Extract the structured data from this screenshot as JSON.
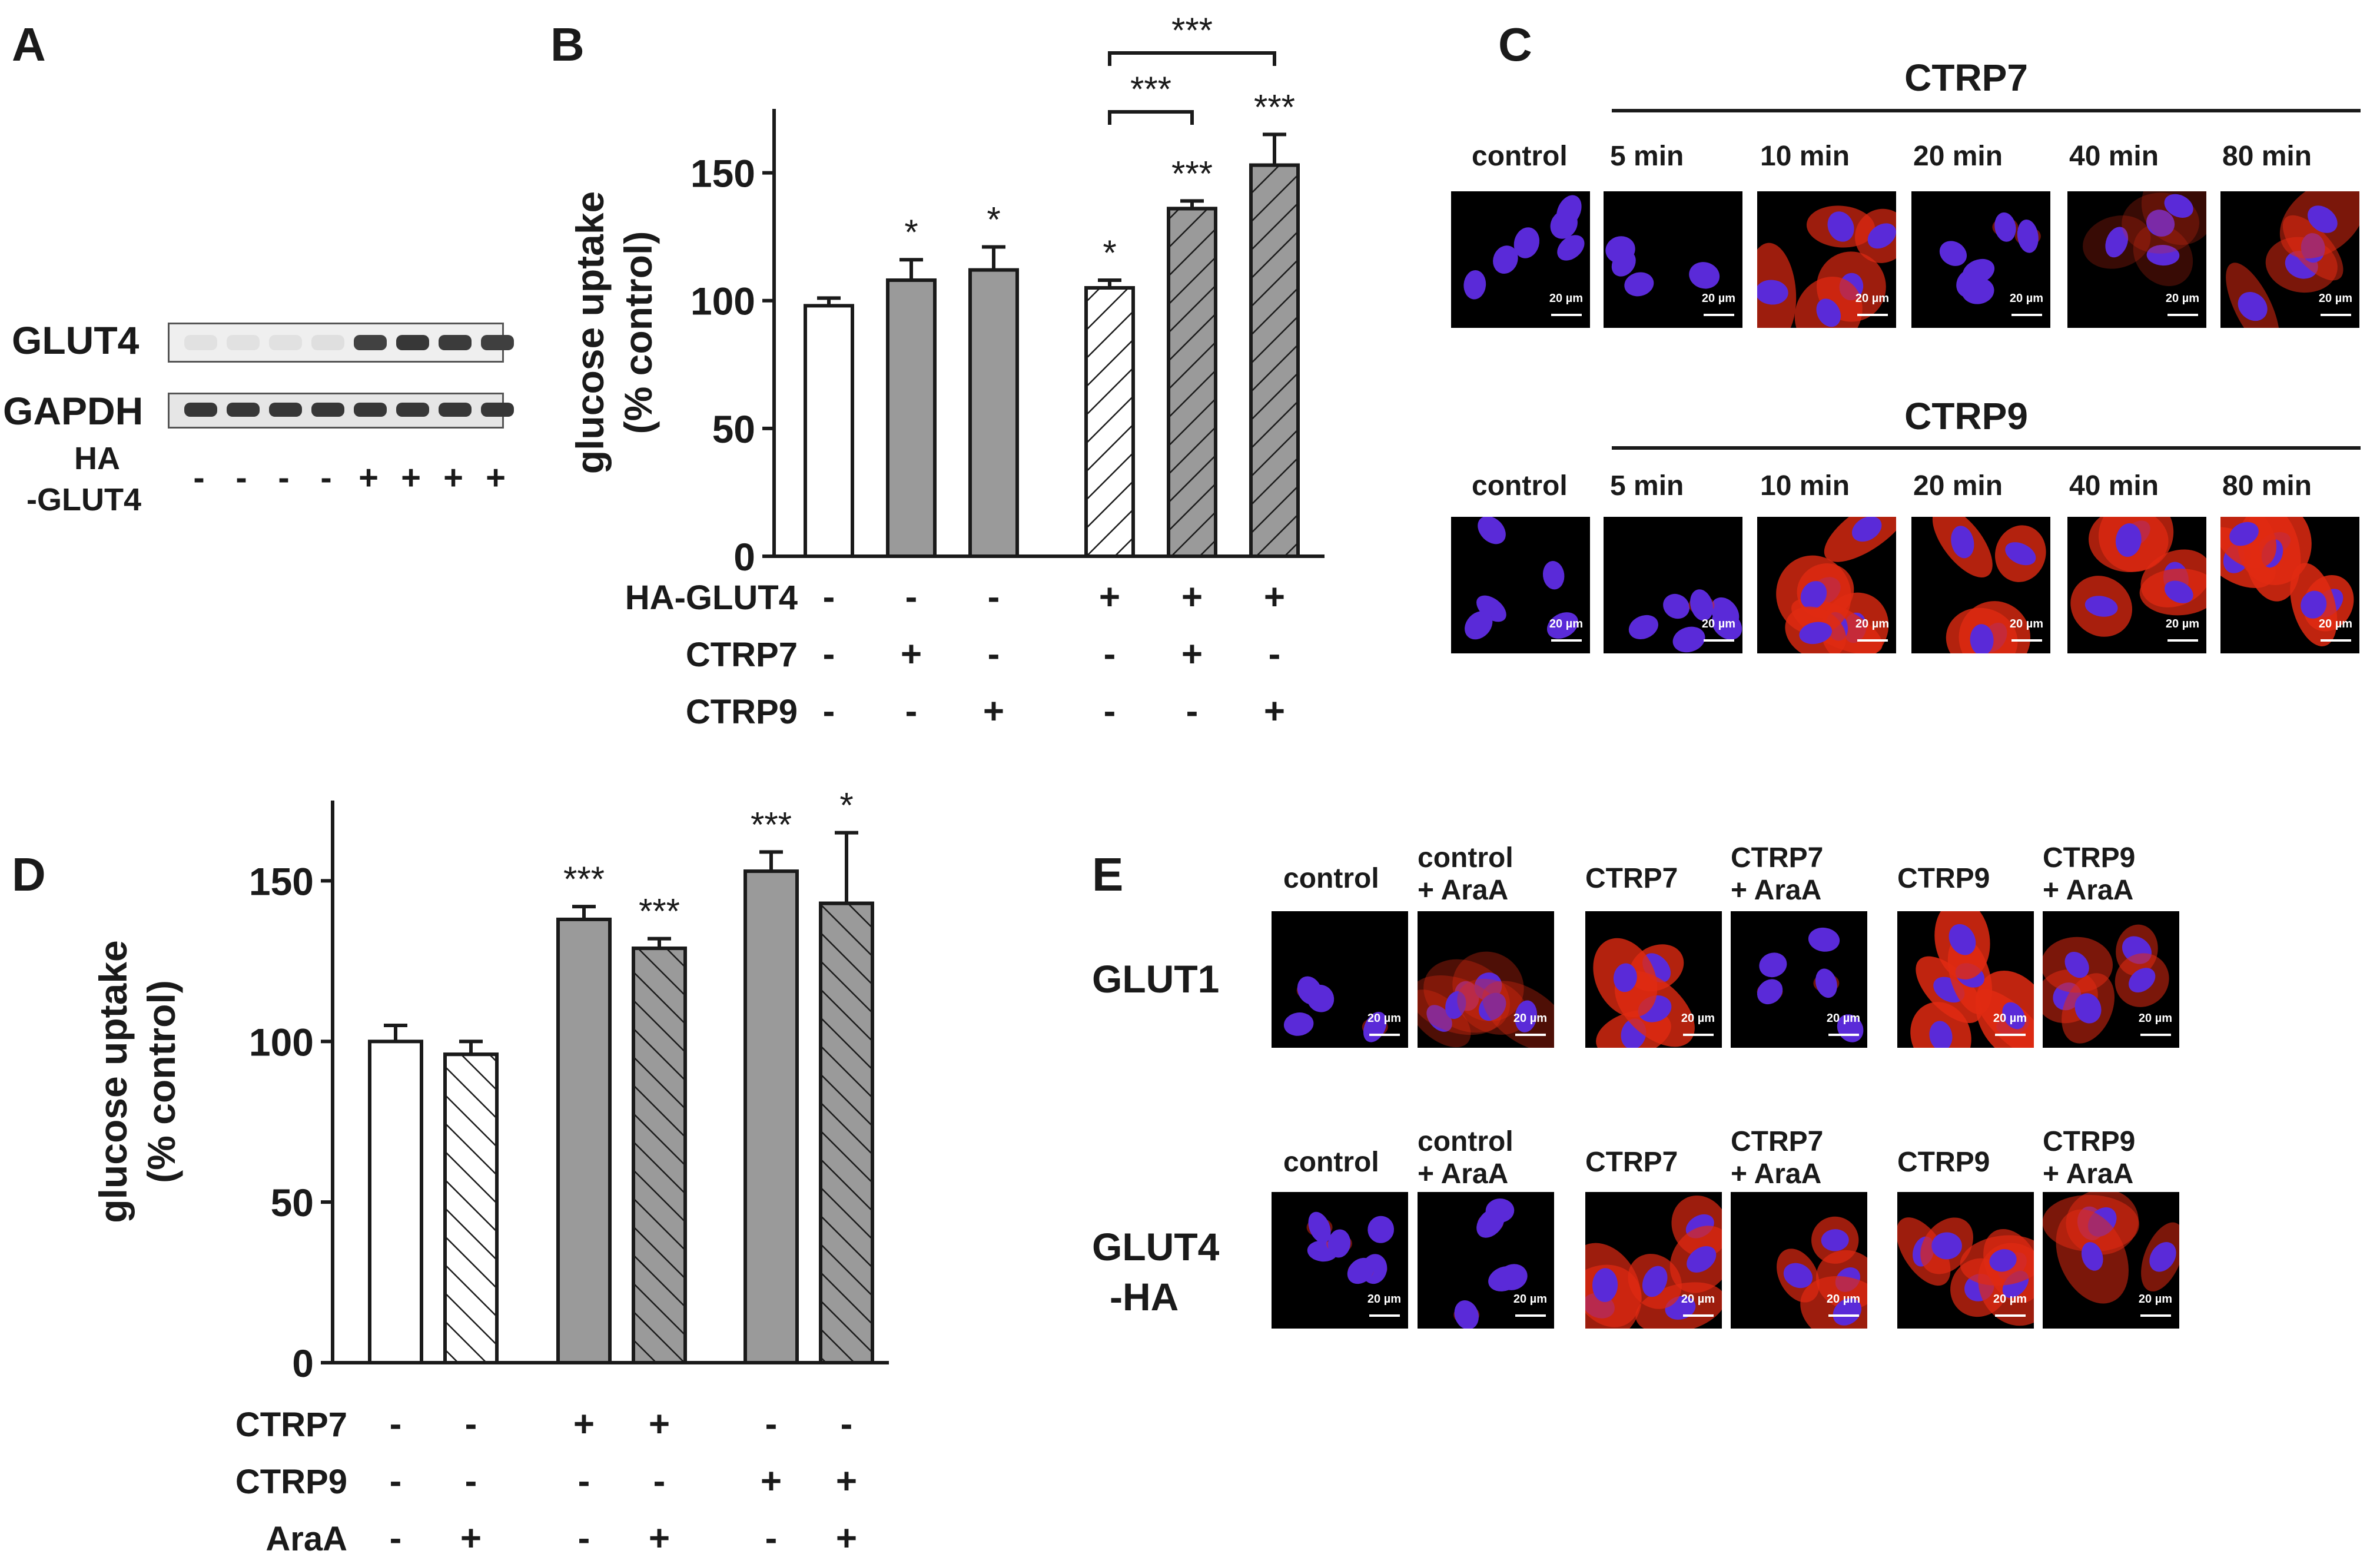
{
  "colors": {
    "bar_control": "#ffffff",
    "bar_treated": "#9a9a9a",
    "axis": "#1a1a1a",
    "micrograph_bg": "#000000",
    "nucleus": "#5a2ad8",
    "red_stain": "#e02a12"
  },
  "panel_labels": {
    "a": "A",
    "b": "B",
    "c": "C",
    "d": "D",
    "e": "E"
  },
  "panel_a": {
    "row_labels": [
      "GLUT4",
      "GAPDH"
    ],
    "ha_label": "HA",
    "ha_label2": "-GLUT4",
    "lane_signs": [
      "-",
      "-",
      "-",
      "-",
      "+",
      "+",
      "+",
      "+"
    ],
    "glut4_band_intensity": [
      0.05,
      0.05,
      0.05,
      0.06,
      0.85,
      0.9,
      0.88,
      0.86
    ],
    "gapdh_band_intensity": [
      0.9,
      0.9,
      0.9,
      0.9,
      0.9,
      0.9,
      0.9,
      0.9
    ]
  },
  "panel_c": {
    "group_labels": [
      "CTRP7",
      "CTRP9"
    ],
    "column_labels": [
      "control",
      "5 min",
      "10 min",
      "20 min",
      "40 min",
      "80 min"
    ],
    "scale_bar": "20 µm",
    "red_intensity": [
      [
        0.05,
        0.05,
        0.7,
        0.1,
        0.25,
        0.55
      ],
      [
        0.05,
        0.1,
        0.8,
        0.8,
        0.75,
        0.85
      ]
    ]
  },
  "panel_e": {
    "row_labels": [
      "GLUT1",
      "GLUT4",
      "-HA"
    ],
    "col_labels": [
      "control",
      "control",
      "+ AraA",
      "CTRP7",
      "CTRP7",
      "+ AraA",
      "CTRP9",
      "CTRP9",
      "+ AraA"
    ],
    "scale_bar": "20 µm",
    "red_intensity": [
      [
        0.1,
        0.35,
        0.8,
        0.15,
        0.85,
        0.55
      ],
      [
        0.15,
        0.15,
        0.7,
        0.7,
        0.7,
        0.55
      ]
    ]
  },
  "chart_data": [
    {
      "panel": "B",
      "type": "bar",
      "ylabel": "glucose uptake",
      "ylabel2": "(% control)",
      "ylim": [
        0,
        175
      ],
      "yticks": [
        0,
        50,
        100,
        150
      ],
      "values": [
        98,
        108,
        112,
        105,
        136,
        153
      ],
      "errors": [
        3,
        8,
        9,
        3,
        3,
        12
      ],
      "fills": [
        "white",
        "gray",
        "gray",
        "hatch-white",
        "hatch-gray",
        "hatch-gray"
      ],
      "significance": [
        "",
        "*",
        "*",
        "*",
        "***",
        "***"
      ],
      "brackets": [
        {
          "from": 3,
          "to": 4,
          "label": "***"
        },
        {
          "from": 3,
          "to": 5,
          "label": "***"
        }
      ],
      "condition_rows": [
        {
          "label": "HA-GLUT4",
          "signs": [
            "-",
            "-",
            "-",
            "+",
            "+",
            "+"
          ]
        },
        {
          "label": "CTRP7",
          "signs": [
            "-",
            "+",
            "-",
            "-",
            "+",
            "-"
          ]
        },
        {
          "label": "CTRP9",
          "signs": [
            "-",
            "-",
            "+",
            "-",
            "-",
            "+"
          ]
        }
      ]
    },
    {
      "panel": "D",
      "type": "bar",
      "ylabel": "glucose uptake",
      "ylabel2": "(% control)",
      "ylim": [
        0,
        175
      ],
      "yticks": [
        0,
        50,
        100,
        150
      ],
      "values": [
        100,
        96,
        138,
        129,
        153,
        143
      ],
      "errors": [
        5,
        4,
        4,
        3,
        6,
        22
      ],
      "fills": [
        "white",
        "hatch-white",
        "gray",
        "hatch-gray",
        "gray",
        "hatch-gray"
      ],
      "significance": [
        "",
        "",
        "***",
        "***",
        "***",
        "*"
      ],
      "condition_rows": [
        {
          "label": "CTRP7",
          "signs": [
            "-",
            "-",
            "+",
            "+",
            "-",
            "-"
          ]
        },
        {
          "label": "CTRP9",
          "signs": [
            "-",
            "-",
            "-",
            "-",
            "+",
            "+"
          ]
        },
        {
          "label": "AraA",
          "signs": [
            "-",
            "+",
            "-",
            "+",
            "-",
            "+"
          ]
        }
      ]
    }
  ]
}
